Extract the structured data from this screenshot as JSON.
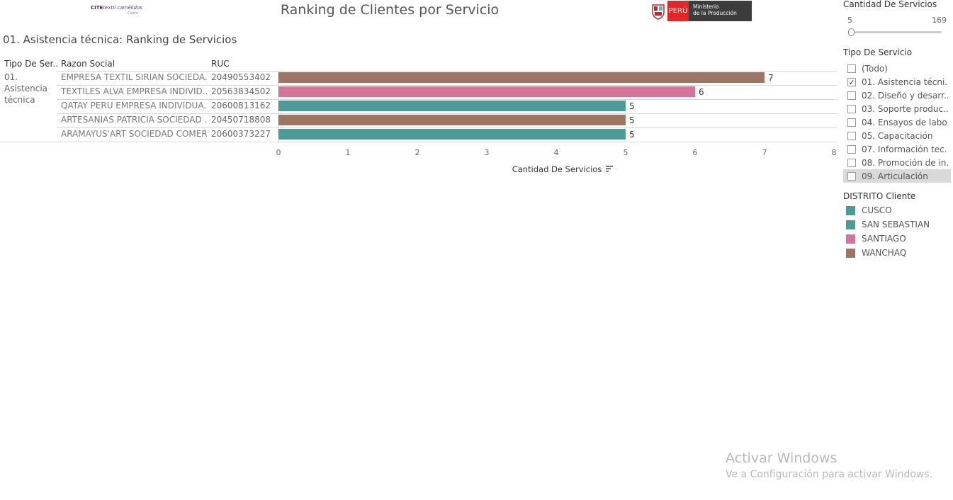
{
  "header": {
    "logo_brand": "CITE",
    "logo_text": "textil camélidos",
    "logo_sub": "Cusco",
    "title": "Ranking de Clientes por Servicio",
    "gov_country": "PERÚ",
    "gov_ministry_line1": "Ministerio",
    "gov_ministry_line2": "de la Producción"
  },
  "sheet_title": "01. Asistencia técnica: Ranking de Servicios",
  "table": {
    "headers": {
      "tipo": "Tipo De Ser..",
      "razon": "Razon Social",
      "ruc": "RUC"
    },
    "tipo_value": "01. Asistencia técnica"
  },
  "chart_data": {
    "type": "bar",
    "orientation": "horizontal",
    "categories": [
      "EMPRESA TEXTIL SIRIAN SOCIEDA..",
      "TEXTILES ALVA EMPRESA INDIVID..",
      "QATAY PERU EMPRESA INDIVIDUA..",
      "ARTESANIAS PATRICIA SOCIEDAD ..",
      "ARAMAYUS'ART SOCIEDAD COMER.."
    ],
    "ruc": [
      "20490553402",
      "20563834502",
      "20600813162",
      "20450718808",
      "20600373227"
    ],
    "values": [
      7,
      6,
      5,
      5,
      5
    ],
    "distrito": [
      "WANCHAQ",
      "SANTIAGO",
      "SAN SEBASTIAN",
      "WANCHAQ",
      "SAN SEBASTIAN"
    ],
    "xlabel": "Cantidad De Servicios",
    "xlim": [
      0,
      8
    ],
    "xticks": [
      "0",
      "1",
      "2",
      "3",
      "4",
      "5",
      "6",
      "7",
      "8"
    ]
  },
  "colors": {
    "CUSCO": "#4e9a96",
    "SAN SEBASTIAN": "#4e9a96",
    "SANTIAGO": "#d4749a",
    "WANCHAQ": "#9c7565"
  },
  "panel": {
    "slider_title": "Cantidad De Servicios",
    "slider_min": "5",
    "slider_max": "169",
    "filter_title": "Tipo De Servicio",
    "filter_items": [
      {
        "label": "(Todo)",
        "checked": false
      },
      {
        "label": "01. Asistencia técni...",
        "checked": true
      },
      {
        "label": "02. Diseño y desarr...",
        "checked": false
      },
      {
        "label": "03. Soporte produc...",
        "checked": false
      },
      {
        "label": "04. Ensayos de labo...",
        "checked": false
      },
      {
        "label": "05. Capacitación",
        "checked": false
      },
      {
        "label": "07. Información tec...",
        "checked": false
      },
      {
        "label": "08. Promoción de in...",
        "checked": false
      },
      {
        "label": "09. Articulación",
        "checked": false
      }
    ],
    "legend_title": "DISTRITO Cliente",
    "legend_items": [
      "CUSCO",
      "SAN SEBASTIAN",
      "SANTIAGO",
      "WANCHAQ"
    ]
  },
  "watermark": {
    "line1": "Activar Windows",
    "line2": "Ve a Configuración para activar Windows."
  }
}
